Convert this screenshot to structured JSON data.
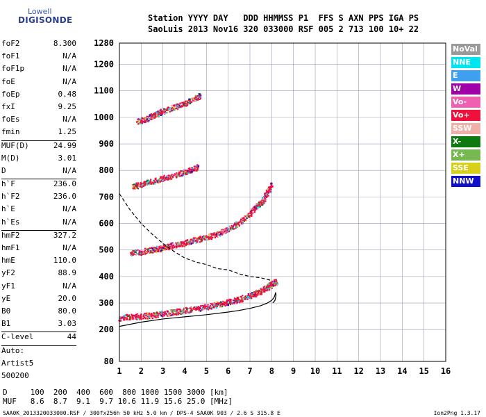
{
  "logo": {
    "line1": "Lowell",
    "line2": "DIGISONDE"
  },
  "header": {
    "line1": "Station YYYY DAY   DDD HHMMSS P1  FFS S AXN PPS IGA PS",
    "line2": "SaoLuis 2013 Nov16 320 033000 RSF 005 2 713 100 10+ 22"
  },
  "params": [
    {
      "name": "foF2",
      "value": "8.300"
    },
    {
      "name": "foF1",
      "value": "N/A"
    },
    {
      "name": "foF1p",
      "value": "N/A"
    },
    {
      "name": "foE",
      "value": "N/A"
    },
    {
      "name": "foEp",
      "value": "0.48"
    },
    {
      "name": "fxI",
      "value": "9.25"
    },
    {
      "name": "foEs",
      "value": "N/A"
    },
    {
      "name": "fmin",
      "value": "1.25"
    },
    {
      "sep": true
    },
    {
      "name": "MUF(D)",
      "value": "24.99"
    },
    {
      "name": "M(D)",
      "value": "3.01"
    },
    {
      "name": "D",
      "value": "N/A"
    },
    {
      "sep": true
    },
    {
      "name": "h`F",
      "value": "236.0"
    },
    {
      "name": "h`F2",
      "value": "236.0"
    },
    {
      "name": "h`E",
      "value": "N/A"
    },
    {
      "name": "h`Es",
      "value": "N/A"
    },
    {
      "sep": true
    },
    {
      "name": "hmF2",
      "value": "327.2"
    },
    {
      "name": "hmF1",
      "value": "N/A"
    },
    {
      "name": "hmE",
      "value": "110.0"
    },
    {
      "name": "yF2",
      "value": "88.9"
    },
    {
      "name": "yF1",
      "value": "N/A"
    },
    {
      "name": "yE",
      "value": "20.0"
    },
    {
      "name": "B0",
      "value": "80.0"
    },
    {
      "name": "B1",
      "value": "3.03"
    },
    {
      "sep": true
    },
    {
      "name": "C-level",
      "value": "44"
    },
    {
      "sep": true
    },
    {
      "name": "Auto:",
      "value": ""
    },
    {
      "name": "Artist5",
      "value": ""
    },
    {
      "name": "500200",
      "value": ""
    }
  ],
  "legend": [
    {
      "label": "NoVal",
      "color": "#9a9a9a"
    },
    {
      "label": "NNE",
      "color": "#00e6f0"
    },
    {
      "label": "E",
      "color": "#3fa0f0"
    },
    {
      "label": "W",
      "color": "#a000a8"
    },
    {
      "label": "Vo-",
      "color": "#f060b0"
    },
    {
      "label": "Vo+",
      "color": "#f0103c"
    },
    {
      "label": "SSW",
      "color": "#f0b0a8"
    },
    {
      "label": "X-",
      "color": "#107810"
    },
    {
      "label": "X+",
      "color": "#78b850"
    },
    {
      "label": "SSE",
      "color": "#d8d018"
    },
    {
      "label": "NNW",
      "color": "#1010c8"
    }
  ],
  "footer": {
    "line1": "D     100  200  400  600  800 1000 1500 3000 [km]",
    "line2": "MUF   8.6  8.7  9.1  9.7 10.6 11.9 15.6 25.0 [MHz]",
    "file": "SAA0K_2013320033000.RSF / 300fx256h 50 kHz 5.0 km / DPS-4 SAA0K 903 / 2.6 S 315.8 E",
    "version": "Ion2Png 1.3.17"
  },
  "chart_data": {
    "type": "scatter",
    "xlim": [
      1,
      16
    ],
    "ylim": [
      80,
      1280
    ],
    "x_ticks": [
      "1",
      "2",
      "3",
      "4",
      "5",
      "6",
      "7",
      "8",
      "9",
      "10",
      "11",
      "12",
      "13",
      "14",
      "15",
      "16"
    ],
    "y_ticks": [
      "80",
      "200",
      "300",
      "400",
      "500",
      "600",
      "700",
      "800",
      "900",
      "1000",
      "1100",
      "1200",
      "1280"
    ],
    "grid": true,
    "traces": [
      {
        "name": "F2 O-trace",
        "x": [
          1.0,
          1.5,
          2,
          2.5,
          3,
          3.5,
          4,
          4.5,
          5,
          5.5,
          6,
          6.5,
          7,
          7.3,
          7.6,
          7.8,
          8.0,
          8.2
        ],
        "y": [
          245,
          250,
          252,
          256,
          262,
          268,
          274,
          280,
          288,
          296,
          305,
          316,
          330,
          340,
          352,
          362,
          372,
          382
        ]
      },
      {
        "name": "F2 2-hop",
        "x": [
          1.5,
          2,
          2.5,
          3,
          3.5,
          4,
          4.5,
          5,
          5.5,
          6,
          6.5,
          7,
          7.3,
          7.6,
          7.8,
          8.0
        ],
        "y": [
          490,
          495,
          502,
          510,
          520,
          528,
          540,
          550,
          562,
          580,
          605,
          640,
          665,
          690,
          720,
          750
        ]
      },
      {
        "name": "F2 3-hop",
        "x": [
          1.6,
          2,
          2.5,
          3,
          3.5,
          4,
          4.3,
          4.6
        ],
        "y": [
          740,
          750,
          760,
          772,
          785,
          795,
          805,
          815
        ]
      },
      {
        "name": "F2 4-hop",
        "x": [
          1.8,
          2.2,
          2.6,
          3,
          3.5,
          4,
          4.4,
          4.7
        ],
        "y": [
          985,
          995,
          1010,
          1025,
          1040,
          1055,
          1070,
          1085
        ]
      },
      {
        "name": "profile",
        "x": [
          1.0,
          2,
          3,
          4,
          5,
          6,
          6.5,
          7,
          7.5,
          7.8,
          8.0,
          8.1,
          8.15,
          8.18,
          8.2,
          8.15,
          8.05
        ],
        "y": [
          212,
          228,
          240,
          248,
          256,
          266,
          272,
          280,
          290,
          300,
          310,
          320,
          330,
          340,
          330,
          310,
          300
        ]
      },
      {
        "name": "profile dashed",
        "x": [
          1.0,
          1.5,
          2,
          2.5,
          3,
          3.5,
          4,
          4.5,
          5,
          5.5,
          6,
          6.5,
          7,
          7.5,
          8.0
        ],
        "y": [
          712,
          650,
          600,
          560,
          525,
          495,
          470,
          455,
          445,
          430,
          425,
          410,
          400,
          395,
          385
        ]
      }
    ]
  }
}
